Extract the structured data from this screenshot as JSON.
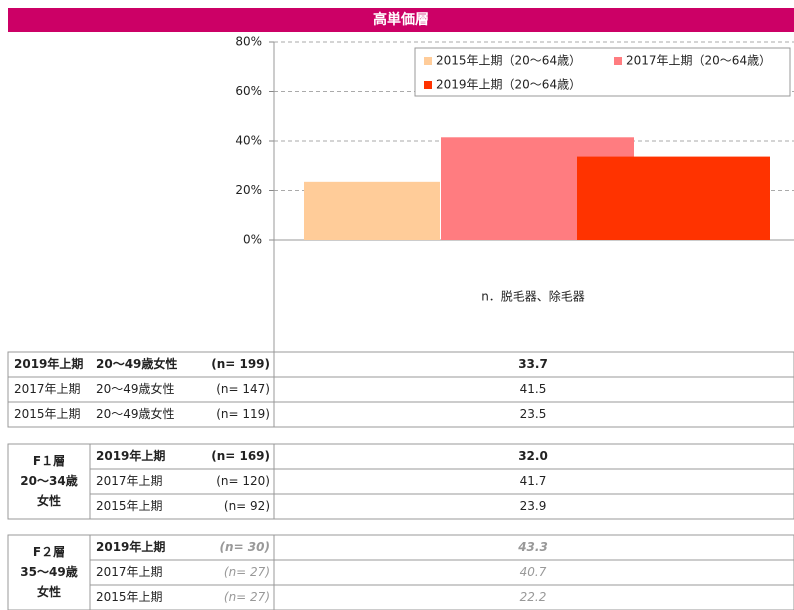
{
  "header": {
    "title": "高単価層"
  },
  "chart_data": {
    "type": "bar",
    "categories": [
      "n．脱毛器、除毛器"
    ],
    "series": [
      {
        "name": "2015年上期（20～64歳）",
        "color": "#ffcc99",
        "values": [
          23.5
        ]
      },
      {
        "name": "2017年上期（20～64歳）",
        "color": "#ff7c80",
        "values": [
          41.5
        ]
      },
      {
        "name": "2019年上期（20～64歳）",
        "color": "#ff3300",
        "values": [
          33.7
        ]
      }
    ],
    "ylim": [
      0,
      80
    ],
    "yticks": [
      {
        "value": 0,
        "label": "0%"
      },
      {
        "value": 20,
        "label": "20%"
      },
      {
        "value": 40,
        "label": "40%"
      },
      {
        "value": 60,
        "label": "60%"
      },
      {
        "value": 80,
        "label": "80%"
      }
    ],
    "grid": true,
    "legend": "top-right"
  },
  "table": {
    "sections": [
      {
        "rows": [
          [
            "2019年上期",
            "20～49歳女性",
            "(n= 199)",
            "33.7"
          ],
          [
            "2017年上期",
            "20～49歳女性",
            "(n= 147)",
            "41.5"
          ],
          [
            "2015年上期",
            "20～49歳女性",
            "(n= 119)",
            "23.5"
          ]
        ]
      },
      {
        "group": [
          "F１層",
          "20～34歳",
          "女性"
        ],
        "rows": [
          [
            "2019年上期",
            "(n= 169)",
            "32.0"
          ],
          [
            "2017年上期",
            "(n= 120)",
            "41.7"
          ],
          [
            "2015年上期",
            "(n= 92)",
            "23.9"
          ]
        ]
      },
      {
        "group": [
          "F２層",
          "35～49歳",
          "女性"
        ],
        "rows": [
          [
            "2019年上期",
            "(n= 30)",
            "43.3"
          ],
          [
            "2017年上期",
            "(n= 27)",
            "40.7"
          ],
          [
            "2015年上期",
            "(n= 27)",
            "22.2"
          ]
        ]
      }
    ]
  }
}
